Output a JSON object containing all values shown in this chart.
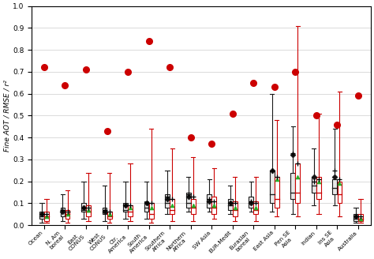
{
  "categories": [
    "Ocean",
    "N. Am\nboreal",
    "East\nCONUS",
    "West\nCONUS",
    "Ctr.\nAmerica",
    "South\nAmerica",
    "Southern\nAfrica",
    "Northern\nAfrica",
    "SW Asia",
    "EUR-Medit",
    "Eurasian\nboreal",
    "East Asia",
    "Pen SE\nAsia",
    "Indian",
    "Ins SE\nAsia",
    "Australia"
  ],
  "ylabel": "Fine AOT / RMSE / r²",
  "ylim": [
    0.0,
    1.0
  ],
  "yticks": [
    0.0,
    0.1,
    0.2,
    0.3,
    0.4,
    0.5,
    0.6,
    0.7,
    0.8,
    0.9,
    1.0
  ],
  "black_boxes": {
    "whisker_low": [
      0.01,
      0.02,
      0.03,
      0.02,
      0.03,
      0.03,
      0.05,
      0.06,
      0.06,
      0.05,
      0.06,
      0.06,
      0.05,
      0.09,
      0.09,
      0.01
    ],
    "q1": [
      0.03,
      0.04,
      0.06,
      0.05,
      0.06,
      0.06,
      0.08,
      0.08,
      0.08,
      0.07,
      0.08,
      0.1,
      0.12,
      0.15,
      0.14,
      0.02
    ],
    "median": [
      0.04,
      0.06,
      0.07,
      0.06,
      0.07,
      0.08,
      0.1,
      0.1,
      0.11,
      0.09,
      0.1,
      0.14,
      0.15,
      0.18,
      0.17,
      0.03
    ],
    "q3": [
      0.06,
      0.08,
      0.1,
      0.08,
      0.1,
      0.11,
      0.14,
      0.15,
      0.14,
      0.12,
      0.13,
      0.25,
      0.24,
      0.22,
      0.21,
      0.05
    ],
    "whisker_high": [
      0.1,
      0.14,
      0.2,
      0.18,
      0.2,
      0.2,
      0.25,
      0.22,
      0.21,
      0.18,
      0.2,
      0.6,
      0.45,
      0.35,
      0.44,
      0.08
    ],
    "mean": [
      0.05,
      0.07,
      0.08,
      0.07,
      0.09,
      0.1,
      0.13,
      0.14,
      0.12,
      0.1,
      0.11,
      0.25,
      0.33,
      0.2,
      0.25,
      0.04
    ],
    "diamond": [
      0.05,
      0.06,
      0.08,
      0.06,
      0.09,
      0.1,
      0.12,
      0.13,
      0.11,
      0.1,
      0.1,
      0.25,
      0.32,
      0.22,
      0.22,
      0.04
    ]
  },
  "gray_boxes": {
    "whisker_low": [
      0.01,
      0.02,
      0.03,
      0.02,
      0.03,
      0.03,
      0.05,
      0.05,
      0.05,
      0.04,
      0.05,
      0.07,
      0.06,
      0.1,
      0.1,
      0.01
    ],
    "q1": [
      0.02,
      0.04,
      0.05,
      0.04,
      0.05,
      0.05,
      0.07,
      0.07,
      0.07,
      0.06,
      0.07,
      0.1,
      0.12,
      0.14,
      0.13,
      0.02
    ],
    "median": [
      0.03,
      0.05,
      0.06,
      0.05,
      0.06,
      0.07,
      0.09,
      0.09,
      0.1,
      0.08,
      0.09,
      0.13,
      0.14,
      0.17,
      0.16,
      0.03
    ],
    "q3": [
      0.05,
      0.07,
      0.09,
      0.07,
      0.09,
      0.09,
      0.12,
      0.13,
      0.13,
      0.11,
      0.12,
      0.22,
      0.22,
      0.2,
      0.19,
      0.04
    ],
    "whisker_high": [
      0.09,
      0.12,
      0.18,
      0.17,
      0.18,
      0.18,
      0.22,
      0.2,
      0.19,
      0.17,
      0.19,
      0.55,
      0.42,
      0.32,
      0.4,
      0.07
    ]
  },
  "red_boxes": {
    "whisker_low": [
      0.01,
      0.01,
      0.02,
      0.01,
      0.02,
      0.01,
      0.02,
      0.02,
      0.03,
      0.02,
      0.02,
      0.04,
      0.04,
      0.05,
      0.04,
      0.01
    ],
    "q1": [
      0.02,
      0.03,
      0.04,
      0.03,
      0.04,
      0.03,
      0.05,
      0.05,
      0.05,
      0.04,
      0.05,
      0.08,
      0.1,
      0.12,
      0.1,
      0.02
    ],
    "median": [
      0.04,
      0.05,
      0.06,
      0.04,
      0.06,
      0.05,
      0.07,
      0.08,
      0.08,
      0.07,
      0.07,
      0.12,
      0.15,
      0.15,
      0.14,
      0.03
    ],
    "q3": [
      0.06,
      0.07,
      0.09,
      0.06,
      0.09,
      0.1,
      0.12,
      0.12,
      0.13,
      0.11,
      0.11,
      0.22,
      0.28,
      0.22,
      0.2,
      0.05
    ],
    "whisker_high": [
      0.12,
      0.16,
      0.24,
      0.24,
      0.28,
      0.44,
      0.35,
      0.31,
      0.26,
      0.22,
      0.22,
      0.48,
      0.91,
      0.51,
      0.61,
      0.12
    ],
    "mean": [
      0.05,
      0.06,
      0.08,
      0.06,
      0.09,
      0.1,
      0.12,
      0.13,
      0.11,
      0.1,
      0.1,
      0.22,
      0.28,
      0.21,
      0.21,
      0.04
    ],
    "triangle": [
      0.04,
      0.05,
      0.07,
      0.05,
      0.08,
      0.08,
      0.09,
      0.09,
      0.09,
      0.08,
      0.08,
      0.21,
      0.22,
      0.2,
      0.19,
      0.03
    ]
  },
  "red_dots": [
    0.72,
    0.64,
    0.71,
    0.43,
    0.7,
    0.84,
    0.72,
    0.4,
    0.37,
    0.51,
    0.65,
    0.63,
    0.7,
    0.5,
    0.46,
    0.59
  ],
  "box_width": 0.22,
  "box_color_black": "#1a1a1a",
  "box_color_gray": "#888888",
  "box_color_red": "#cc0000",
  "box_face_black": "#e8e8e8",
  "box_face_gray": "#d0d0d0",
  "box_face_red": "#ffffff",
  "red_dot_color": "#cc0000",
  "green_triangle_color": "#22aa22",
  "mean_cross_color": "#000000",
  "diamond_color": "#111111",
  "figsize": [
    4.74,
    3.28
  ],
  "dpi": 100,
  "background_color": "#ffffff"
}
